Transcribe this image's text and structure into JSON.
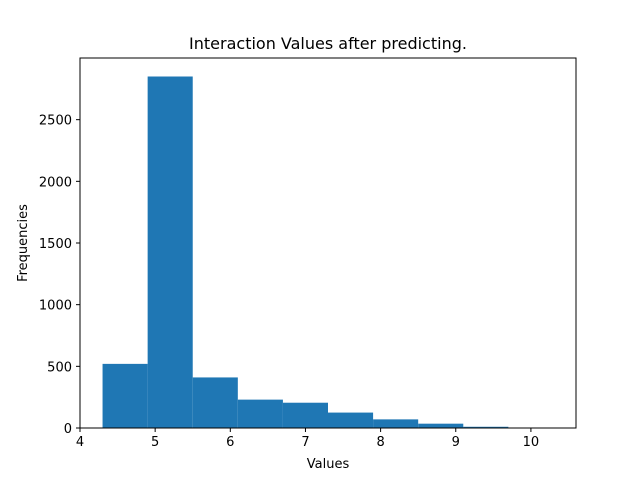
{
  "chart_data": {
    "type": "histogram",
    "title": "Interaction Values after predicting.",
    "xlabel": "Values",
    "ylabel": "Frequencies",
    "xlim": [
      4.0,
      10.6
    ],
    "ylim": [
      0,
      3000
    ],
    "xticks": [
      4,
      5,
      6,
      7,
      8,
      9,
      10
    ],
    "yticks": [
      0,
      500,
      1000,
      1500,
      2000,
      2500
    ],
    "bins": [
      {
        "start": 4.3,
        "end": 4.9,
        "count": 520
      },
      {
        "start": 4.9,
        "end": 5.5,
        "count": 2850
      },
      {
        "start": 5.5,
        "end": 6.1,
        "count": 410
      },
      {
        "start": 6.1,
        "end": 6.7,
        "count": 230
      },
      {
        "start": 6.7,
        "end": 7.3,
        "count": 205
      },
      {
        "start": 7.3,
        "end": 7.9,
        "count": 125
      },
      {
        "start": 7.9,
        "end": 8.5,
        "count": 70
      },
      {
        "start": 8.5,
        "end": 9.1,
        "count": 35
      },
      {
        "start": 9.1,
        "end": 9.7,
        "count": 10
      },
      {
        "start": 9.7,
        "end": 10.3,
        "count": 3
      }
    ],
    "bar_color": "#1f77b4",
    "grid": false,
    "legend": false
  }
}
